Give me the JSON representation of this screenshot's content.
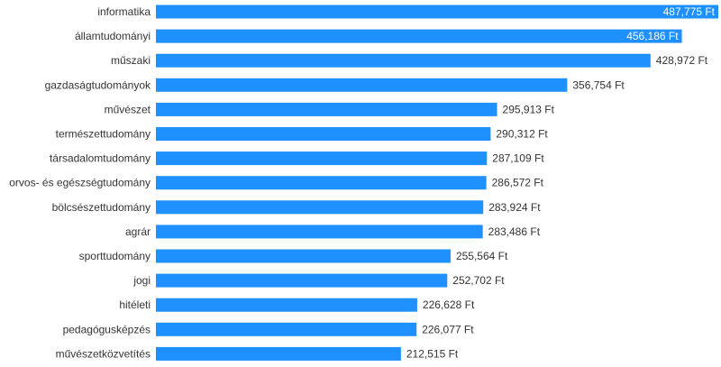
{
  "chart_data": {
    "type": "bar",
    "orientation": "horizontal",
    "categories": [
      "informatika",
      "államtudományi",
      "műszaki",
      "gazdaságtudományok",
      "művészet",
      "természettudomány",
      "társadalomtudomány",
      "orvos- és egészségtudomány",
      "bölcsészettudomány",
      "agrár",
      "sporttudomány",
      "jogi",
      "hitéleti",
      "pedagógusképzés",
      "művészetközvetítés"
    ],
    "values": [
      487775,
      456186,
      428972,
      356754,
      295913,
      290312,
      287109,
      286572,
      283924,
      283486,
      255564,
      252702,
      226628,
      226077,
      212515
    ],
    "value_labels": [
      "487,775 Ft",
      "456,186 Ft",
      "428,972 Ft",
      "356,754 Ft",
      "295,913 Ft",
      "290,312 Ft",
      "287,109 Ft",
      "286,572 Ft",
      "283,924 Ft",
      "283,486 Ft",
      "255,564 Ft",
      "252,702 Ft",
      "226,628 Ft",
      "226,077 Ft",
      "212,515 Ft"
    ],
    "xlim": [
      0,
      487775
    ],
    "bar_color": "#1e90ff",
    "grid": false,
    "legend": "none"
  }
}
